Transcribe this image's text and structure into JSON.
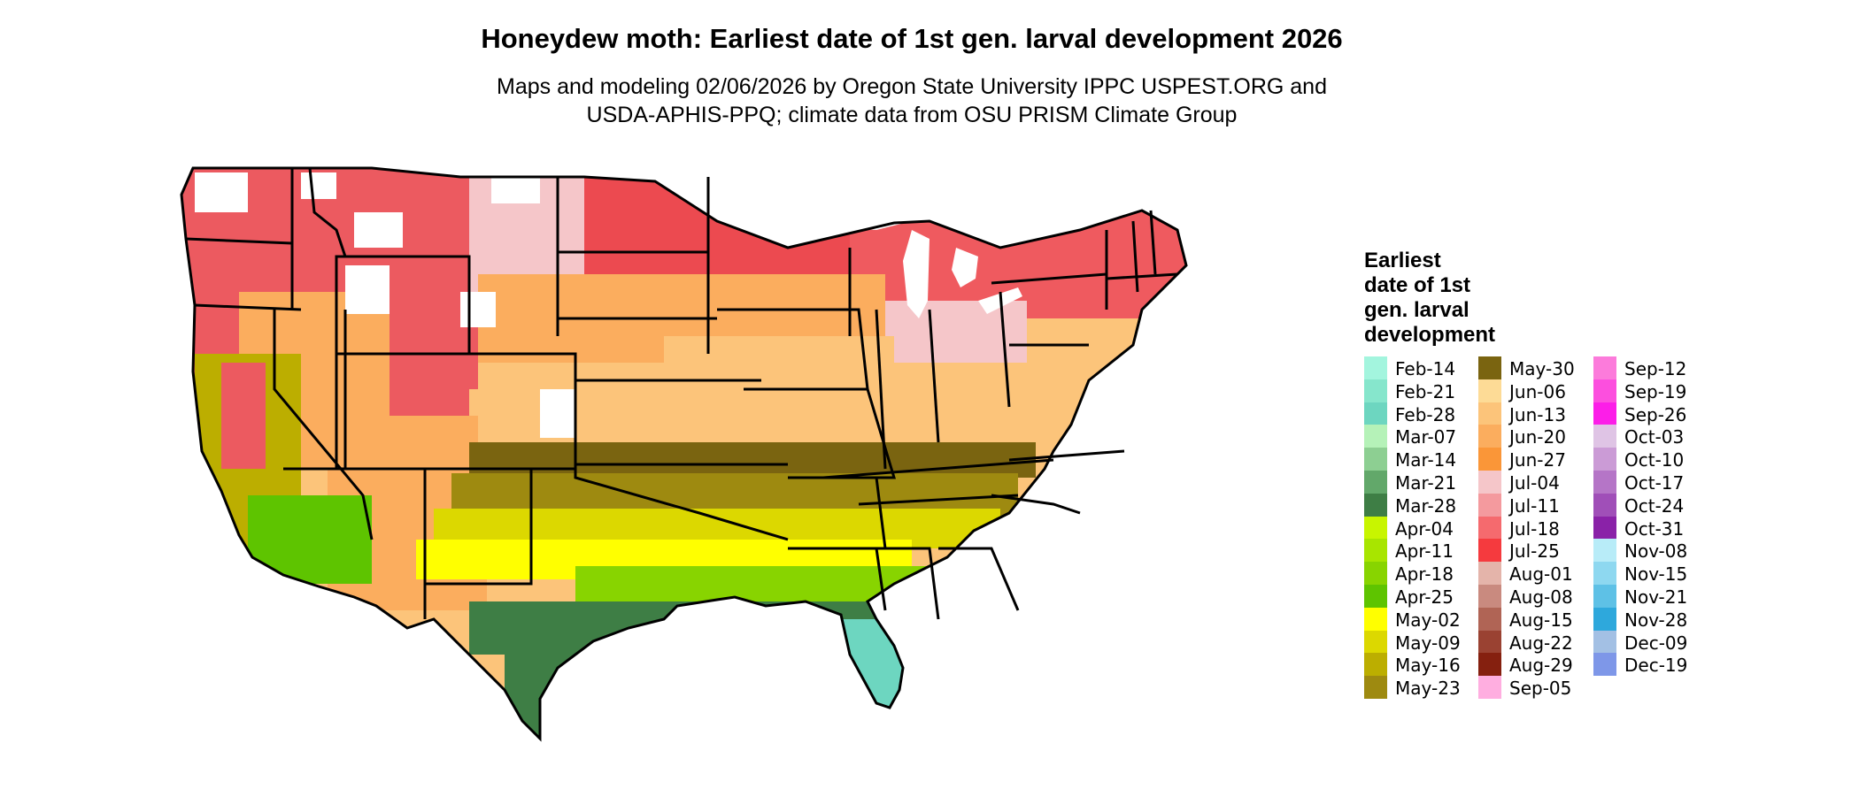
{
  "title": "Honeydew moth: Earliest date of 1st gen. larval development 2026",
  "subtitle_line1": "Maps and modeling 02/06/2026 by Oregon State University IPPC USPEST.ORG and",
  "subtitle_line2": "USDA-APHIS-PPQ; climate data from OSU PRISM Climate Group",
  "legend": {
    "title_lines": [
      "Earliest",
      "date of 1st",
      "gen. larval",
      "development"
    ],
    "columns": [
      [
        {
          "label": "Feb-14",
          "color": "#a3f5de"
        },
        {
          "label": "Feb-21",
          "color": "#86e6cc"
        },
        {
          "label": "Feb-28",
          "color": "#6dd6c0"
        },
        {
          "label": "Mar-07",
          "color": "#b5f2b8"
        },
        {
          "label": "Mar-14",
          "color": "#8dcf92"
        },
        {
          "label": "Mar-21",
          "color": "#62a86a"
        },
        {
          "label": "Mar-28",
          "color": "#3e7e45"
        },
        {
          "label": "Apr-04",
          "color": "#c8f500"
        },
        {
          "label": "Apr-11",
          "color": "#a8e500"
        },
        {
          "label": "Apr-18",
          "color": "#88d400"
        },
        {
          "label": "Apr-25",
          "color": "#5ec400"
        },
        {
          "label": "May-02",
          "color": "#ffff00"
        },
        {
          "label": "May-09",
          "color": "#dcd800"
        },
        {
          "label": "May-16",
          "color": "#bcae00"
        },
        {
          "label": "May-23",
          "color": "#9e8a10"
        }
      ],
      [
        {
          "label": "May-30",
          "color": "#7a6410"
        },
        {
          "label": "Jun-06",
          "color": "#fddb96"
        },
        {
          "label": "Jun-13",
          "color": "#fcc47a"
        },
        {
          "label": "Jun-20",
          "color": "#fbad5e"
        },
        {
          "label": "Jun-27",
          "color": "#fa9638"
        },
        {
          "label": "Jul-04",
          "color": "#f5c6c9"
        },
        {
          "label": "Jul-11",
          "color": "#f49a9e"
        },
        {
          "label": "Jul-18",
          "color": "#f56a6e"
        },
        {
          "label": "Jul-25",
          "color": "#f53a3e"
        },
        {
          "label": "Aug-01",
          "color": "#e4b4aa"
        },
        {
          "label": "Aug-08",
          "color": "#c98a7f"
        },
        {
          "label": "Aug-15",
          "color": "#b06455"
        },
        {
          "label": "Aug-22",
          "color": "#9a4232"
        },
        {
          "label": "Aug-29",
          "color": "#85200f"
        },
        {
          "label": "Sep-05",
          "color": "#ffaee0"
        }
      ],
      [
        {
          "label": "Sep-12",
          "color": "#fc7bdb"
        },
        {
          "label": "Sep-19",
          "color": "#fc4fde"
        },
        {
          "label": "Sep-26",
          "color": "#fc1ee8"
        },
        {
          "label": "Oct-03",
          "color": "#dfc4e5"
        },
        {
          "label": "Oct-10",
          "color": "#cb9bd6"
        },
        {
          "label": "Oct-17",
          "color": "#b575c7"
        },
        {
          "label": "Oct-24",
          "color": "#a04fb8"
        },
        {
          "label": "Oct-31",
          "color": "#8a22a8"
        },
        {
          "label": "Nov-08",
          "color": "#b8ecf8"
        },
        {
          "label": "Nov-15",
          "color": "#8ed8f0"
        },
        {
          "label": "Nov-21",
          "color": "#5ec1e6"
        },
        {
          "label": "Nov-28",
          "color": "#2ea8dc"
        },
        {
          "label": "Dec-09",
          "color": "#a3c0e4"
        },
        {
          "label": "Dec-19",
          "color": "#7e97e8"
        }
      ]
    ]
  },
  "map_colors": {
    "pacific_nw": "#ec5a60",
    "mountains": "#b37466",
    "snow": "#ffffff",
    "north_central": "#f5c6c9",
    "great_lakes": "#ec4a50",
    "new_england": "#ef5a5f",
    "mid_atlantic": "#f5c6c9",
    "midwest": "#fbad5e",
    "plains": "#fcc47a",
    "southwest": "#fbad5e",
    "california_valley": "#bcae00",
    "desert": "#5ec400",
    "gulf_coast": "#3e7e45",
    "florida": "#6dd6c0",
    "south_band_1": "#7a6410",
    "south_band_2": "#9e8a10",
    "south_band_3": "#dcd800",
    "south_band_4": "#ffff00",
    "south_band_5": "#88d400",
    "water": "#ffffff",
    "borders": "#000000"
  }
}
